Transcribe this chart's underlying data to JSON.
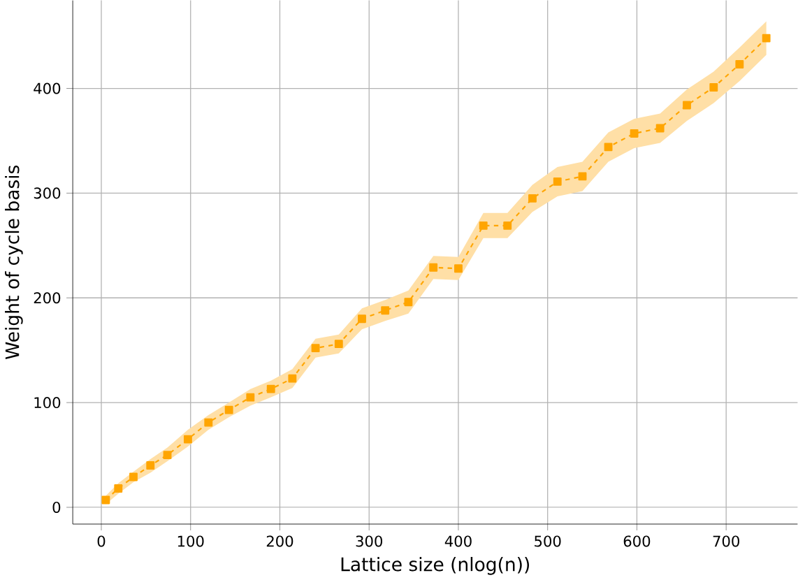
{
  "chart_data": {
    "type": "line",
    "xlabel": "Lattice size (nlog(n))",
    "ylabel": "Weight of cycle basis",
    "xlim": [
      -32,
      780
    ],
    "ylim": [
      -16,
      484
    ],
    "xticks": [
      0,
      100,
      200,
      300,
      400,
      500,
      600,
      700
    ],
    "yticks": [
      0,
      100,
      200,
      300,
      400
    ],
    "grid": true,
    "marker": "square",
    "line_style": "dashed",
    "series": [
      {
        "color": "#ffa500",
        "x": [
          5,
          19,
          36,
          55,
          74,
          97,
          120,
          143,
          167,
          190,
          214,
          240,
          266,
          292,
          318,
          344,
          372,
          400,
          428,
          455,
          483,
          511,
          539,
          568,
          597,
          626,
          656,
          686,
          715,
          745
        ],
        "values": [
          7,
          18,
          29,
          40,
          50,
          65,
          81,
          93,
          105,
          113,
          123,
          152,
          156,
          180,
          188,
          196,
          229,
          228,
          269,
          269,
          295,
          311,
          316,
          344,
          357,
          362,
          384,
          401,
          423,
          448
        ],
        "lower": [
          3,
          13,
          24,
          33,
          44,
          58,
          74,
          86,
          97,
          105,
          114,
          143,
          147,
          170,
          178,
          185,
          218,
          217,
          257,
          257,
          282,
          297,
          302,
          330,
          343,
          348,
          369,
          386,
          407,
          432
        ],
        "upper": [
          11,
          23,
          34,
          46,
          57,
          74,
          88,
          100,
          113,
          121,
          132,
          161,
          165,
          190,
          198,
          207,
          240,
          239,
          281,
          281,
          308,
          325,
          330,
          358,
          371,
          376,
          399,
          416,
          439,
          464
        ]
      }
    ]
  }
}
